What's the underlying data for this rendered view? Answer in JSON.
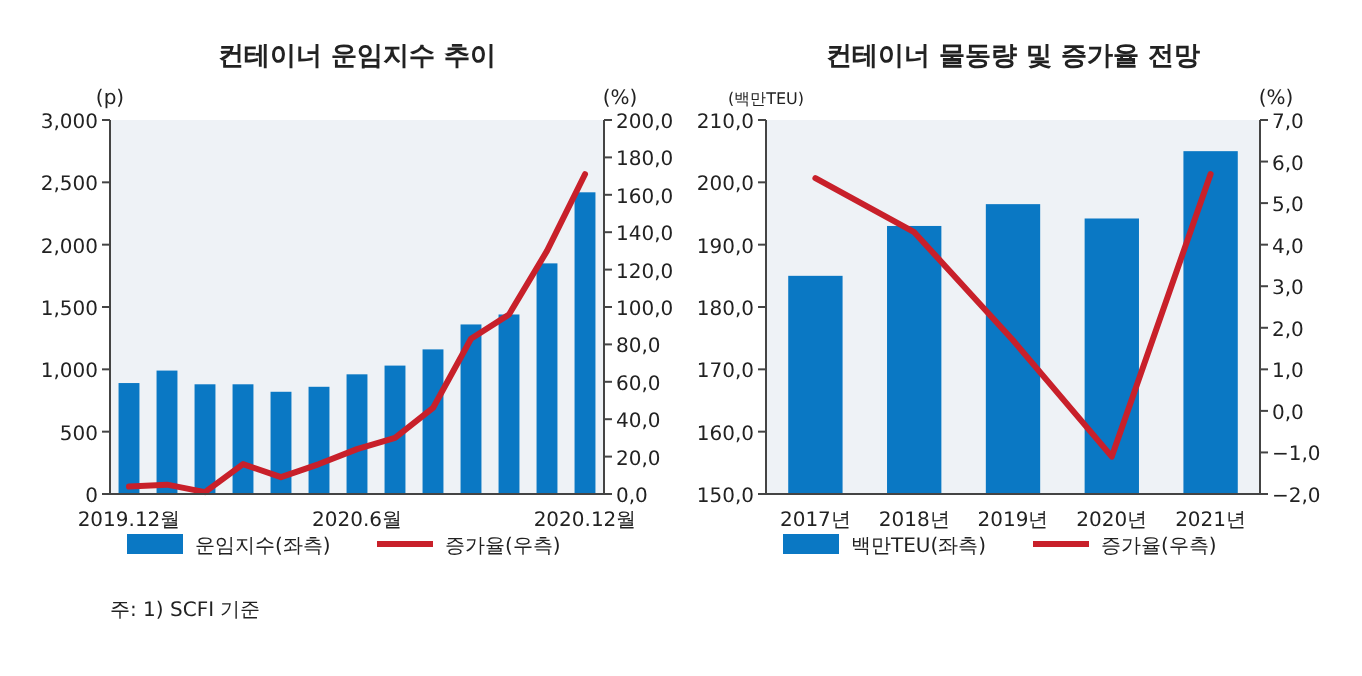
{
  "chart_data": [
    {
      "type": "bar",
      "title": "컨테이너 운임지수 추이",
      "ylabel": "(p)",
      "y2label": "(%)",
      "categories": [
        "2019.12월",
        null,
        null,
        null,
        null,
        null,
        "2020.6월",
        null,
        null,
        null,
        null,
        null,
        "2020.12월"
      ],
      "series": [
        {
          "name": "운임지수(좌측)",
          "color": "#0a78c4",
          "values": [
            890,
            990,
            880,
            880,
            820,
            860,
            960,
            1030,
            1160,
            1360,
            1440,
            1850,
            2420
          ]
        },
        {
          "name": "증가율(우측)",
          "type": "line",
          "axis": "y2",
          "color": "#c8202a",
          "values": [
            4,
            5,
            1,
            16,
            9,
            16,
            24,
            30,
            46,
            83,
            96,
            130,
            171
          ]
        }
      ],
      "ylim": [
        0,
        3000
      ],
      "yticks": [
        0,
        500,
        {
          "value": 1000,
          "label": "1,000"
        },
        {
          "value": 1500,
          "label": "1,500"
        },
        {
          "value": 2000,
          "label": "2,000"
        },
        {
          "value": 2500,
          "label": "2,500"
        },
        {
          "value": 3000,
          "label": "3,000"
        }
      ],
      "y2lim": [
        0,
        200
      ],
      "y2ticks": [
        {
          "value": 0,
          "label": "0,0"
        },
        {
          "value": 20,
          "label": "20,0"
        },
        {
          "value": 40,
          "label": "40,0"
        },
        {
          "value": 60,
          "label": "60,0"
        },
        {
          "value": 80,
          "label": "80,0"
        },
        {
          "value": 100,
          "label": "100,0"
        },
        {
          "value": 120,
          "label": "120,0"
        },
        {
          "value": 140,
          "label": "140,0"
        },
        {
          "value": 160,
          "label": "160,0"
        },
        {
          "value": 180,
          "label": "180,0"
        },
        {
          "value": 200,
          "label": "200,0"
        }
      ],
      "legend": "bottom",
      "grid": false,
      "annotations": [
        "주: 1) SCFI 기준"
      ]
    },
    {
      "type": "bar",
      "title": "컨테이너 물동량 및 증가율 전망",
      "ylabel": "(백만TEU)",
      "y2label": "(%)",
      "categories": [
        "2017년",
        "2018년",
        "2019년",
        "2020년",
        "2021년"
      ],
      "series": [
        {
          "name": "백만TEU(좌측)",
          "color": "#0a78c4",
          "values": [
            185,
            193,
            196.5,
            194.2,
            205
          ]
        },
        {
          "name": "증가율(우측)",
          "type": "line",
          "axis": "y2",
          "color": "#c8202a",
          "values": [
            5.6,
            4.3,
            1.7,
            -1.1,
            5.7
          ]
        }
      ],
      "ylim": [
        150,
        210
      ],
      "yticks": [
        {
          "value": 150,
          "label": "150,0"
        },
        {
          "value": 160,
          "label": "160,0"
        },
        {
          "value": 170,
          "label": "170,0"
        },
        {
          "value": 180,
          "label": "180,0"
        },
        {
          "value": 190,
          "label": "190,0"
        },
        {
          "value": 200,
          "label": "200,0"
        },
        {
          "value": 210,
          "label": "210,0"
        }
      ],
      "y2lim": [
        -2,
        7
      ],
      "y2ticks": [
        {
          "value": -2,
          "label": "−2,0"
        },
        {
          "value": -1,
          "label": "−1,0"
        },
        {
          "value": 0,
          "label": "0,0"
        },
        {
          "value": 1,
          "label": "1,0"
        },
        {
          "value": 2,
          "label": "2,0"
        },
        {
          "value": 3,
          "label": "3,0"
        },
        {
          "value": 4,
          "label": "4,0"
        },
        {
          "value": 5,
          "label": "5,0"
        },
        {
          "value": 6,
          "label": "6,0"
        },
        {
          "value": 7,
          "label": "7,0"
        }
      ],
      "legend": "bottom",
      "grid": false
    }
  ]
}
